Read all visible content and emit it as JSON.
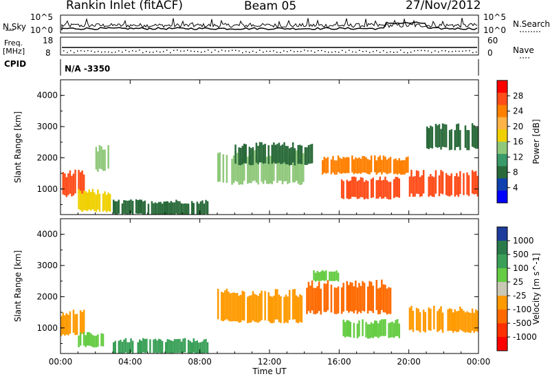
{
  "header": {
    "station": "Rankin Inlet (fitACF)",
    "beam": "Beam 05",
    "date": "27/Nov/2012"
  },
  "noise_panel": {
    "left_label": "N.Sky",
    "left_ticks": [
      "10^5",
      "10^0"
    ],
    "right_label": "N.Search",
    "right_ticks": [
      "10^5",
      "10^0"
    ]
  },
  "freq_panel": {
    "label_line1": "Freq.",
    "label_line2": "[MHz]",
    "left_ticks": [
      "18",
      "8"
    ],
    "right_label": "Nave",
    "right_ticks": [
      "60",
      "0"
    ]
  },
  "cpid": {
    "label": "CPID",
    "value": "N/A -3350"
  },
  "chart_data": [
    {
      "type": "heatmap",
      "panel": "power",
      "ylabel": "Slant Range [km]",
      "ylim": [
        180,
        4500
      ],
      "yticks": [
        1000,
        2000,
        3000,
        4000
      ],
      "xlabel": "",
      "xticks": [
        "00:00",
        "04:00",
        "08:00",
        "12:00",
        "16:00",
        "20:00",
        "00:00"
      ],
      "colorbar": {
        "label": "Power [dB]",
        "ticks": [
          "28",
          "24",
          "20",
          "16",
          "12",
          "8",
          "4"
        ],
        "colors": [
          "#ff0000",
          "#ff4d1a",
          "#ff8000",
          "#ffb347",
          "#f0d000",
          "#8fc87a",
          "#3a9a6a",
          "#2a6a3a",
          "#1040b0",
          "#0000ff"
        ]
      },
      "regions": [
        {
          "t0": 0.0,
          "t1": 1.4,
          "r0": 800,
          "r1": 1500,
          "level": 26
        },
        {
          "t0": 1.0,
          "t1": 3.0,
          "r0": 300,
          "r1": 900,
          "level": 16
        },
        {
          "t0": 2.0,
          "t1": 2.8,
          "r0": 1600,
          "r1": 2300,
          "level": 12
        },
        {
          "t0": 3.0,
          "t1": 8.5,
          "r0": 180,
          "r1": 600,
          "level": 8
        },
        {
          "t0": 9.0,
          "t1": 14.0,
          "r0": 1200,
          "r1": 2100,
          "level": 14
        },
        {
          "t0": 10.0,
          "t1": 14.5,
          "r0": 1800,
          "r1": 2400,
          "level": 8
        },
        {
          "t0": 15.0,
          "t1": 20.0,
          "r0": 1500,
          "r1": 2000,
          "level": 22
        },
        {
          "t0": 16.0,
          "t1": 19.5,
          "r0": 700,
          "r1": 1300,
          "level": 28
        },
        {
          "t0": 20.0,
          "t1": 24.0,
          "r0": 800,
          "r1": 1500,
          "level": 26
        },
        {
          "t0": 21.0,
          "t1": 24.0,
          "r0": 2300,
          "r1": 3000,
          "level": 8
        }
      ]
    },
    {
      "type": "heatmap",
      "panel": "velocity",
      "ylabel": "Slant Range [km]",
      "ylim": [
        180,
        4500
      ],
      "yticks": [
        1000,
        2000,
        3000,
        4000
      ],
      "xlabel": "Time UT",
      "xticks": [
        "00:00",
        "04:00",
        "08:00",
        "12:00",
        "16:00",
        "20:00",
        "00:00"
      ],
      "colorbar": {
        "label": "Velocity [m s^-1]",
        "ticks": [
          "1000",
          "500",
          "100",
          "25",
          "-25",
          "-100",
          "-500",
          "-1000"
        ],
        "colors": [
          "#1e3c9c",
          "#2a7a4a",
          "#3aa058",
          "#66cc44",
          "#c8c8b4",
          "#ff9a00",
          "#ff6a00",
          "#ff3000",
          "#ff0000"
        ]
      },
      "regions": [
        {
          "t0": 0.0,
          "t1": 1.4,
          "r0": 800,
          "r1": 1500,
          "level": -100
        },
        {
          "t0": 1.0,
          "t1": 2.5,
          "r0": 400,
          "r1": 800,
          "level": 25
        },
        {
          "t0": 3.0,
          "t1": 8.5,
          "r0": 180,
          "r1": 600,
          "level": 100
        },
        {
          "t0": 9.0,
          "t1": 14.0,
          "r0": 1200,
          "r1": 2100,
          "level": -100
        },
        {
          "t0": 14.0,
          "t1": 19.0,
          "r0": 1500,
          "r1": 2400,
          "level": -500
        },
        {
          "t0": 16.0,
          "t1": 19.5,
          "r0": 700,
          "r1": 1200,
          "level": 25
        },
        {
          "t0": 20.0,
          "t1": 24.0,
          "r0": 900,
          "r1": 1600,
          "level": -100
        },
        {
          "t0": 14.5,
          "t1": 16.0,
          "r0": 2500,
          "r1": 2800,
          "level": 25
        }
      ]
    }
  ]
}
